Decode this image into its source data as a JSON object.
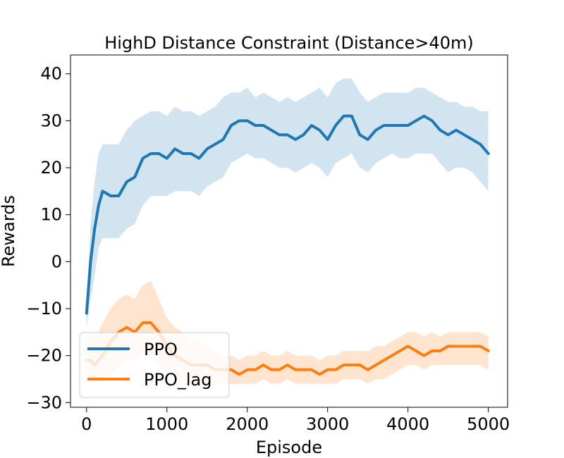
{
  "chart_data": {
    "type": "line",
    "title": "HighD Distance Constraint (Distance>40m)",
    "xlabel": "Episode",
    "ylabel": "Rewards",
    "xlim": [
      -200,
      5240
    ],
    "ylim": [
      -31,
      44
    ],
    "xticks": [
      0,
      1000,
      2000,
      3000,
      4000,
      5000
    ],
    "xtick_labels": [
      "0",
      "1000",
      "2000",
      "3000",
      "4000",
      "5000"
    ],
    "yticks": [
      -30,
      -20,
      -10,
      0,
      10,
      20,
      30,
      40
    ],
    "ytick_labels": [
      "−30",
      "−20",
      "−10",
      "0",
      "10",
      "20",
      "30",
      "40"
    ],
    "grid": false,
    "legend": {
      "position": "lower-left",
      "entries": [
        "PPO",
        "PPO_lag"
      ]
    },
    "series": [
      {
        "name": "PPO",
        "color": "#1f77b4",
        "band_color": "#1f77b4",
        "x": [
          0,
          50,
          100,
          150,
          200,
          300,
          400,
          500,
          600,
          700,
          800,
          900,
          1000,
          1100,
          1200,
          1300,
          1400,
          1500,
          1600,
          1700,
          1800,
          1900,
          2000,
          2100,
          2200,
          2300,
          2400,
          2500,
          2600,
          2700,
          2800,
          2900,
          3000,
          3100,
          3200,
          3300,
          3400,
          3500,
          3600,
          3700,
          3800,
          3900,
          4000,
          4100,
          4200,
          4300,
          4400,
          4500,
          4600,
          4700,
          4800,
          4900,
          5000
        ],
        "mean": [
          -11,
          0,
          7,
          12,
          15,
          14,
          14,
          17,
          18,
          22,
          23,
          23,
          22,
          24,
          23,
          23,
          22,
          24,
          25,
          26,
          29,
          30,
          30,
          29,
          29,
          28,
          27,
          27,
          26,
          27,
          29,
          28,
          26,
          29,
          31,
          31,
          27,
          26,
          28,
          29,
          29,
          29,
          29,
          30,
          31,
          30,
          28,
          27,
          28,
          27,
          26,
          25,
          23
        ],
        "upper": [
          -8,
          8,
          17,
          23,
          25,
          25,
          25,
          28,
          30,
          31,
          32,
          32,
          31,
          33,
          32,
          32,
          31,
          32,
          33,
          35,
          36,
          36,
          37,
          35,
          36,
          35,
          34,
          35,
          34,
          35,
          36,
          37,
          35,
          38,
          39,
          39,
          36,
          34,
          35,
          36,
          36,
          36,
          36,
          37,
          37,
          36,
          35,
          34,
          34,
          33,
          33,
          32,
          32
        ],
        "lower": [
          -14,
          -8,
          -3,
          3,
          5,
          5,
          5,
          7,
          8,
          12,
          14,
          14,
          14,
          15,
          15,
          15,
          14,
          16,
          17,
          18,
          21,
          22,
          23,
          22,
          22,
          21,
          20,
          20,
          19,
          20,
          21,
          20,
          18,
          21,
          22,
          23,
          20,
          19,
          21,
          22,
          23,
          22,
          22,
          23,
          23,
          23,
          21,
          19,
          20,
          20,
          19,
          17,
          15
        ]
      },
      {
        "name": "PPO_lag",
        "color": "#ff7f0e",
        "band_color": "#ff7f0e",
        "x": [
          0,
          50,
          100,
          150,
          200,
          300,
          400,
          500,
          600,
          700,
          800,
          900,
          1000,
          1100,
          1200,
          1300,
          1400,
          1500,
          1600,
          1700,
          1800,
          1900,
          2000,
          2100,
          2200,
          2300,
          2400,
          2500,
          2600,
          2700,
          2800,
          2900,
          3000,
          3100,
          3200,
          3300,
          3400,
          3500,
          3600,
          3700,
          3800,
          3900,
          4000,
          4100,
          4200,
          4300,
          4400,
          4500,
          4600,
          4700,
          4800,
          4900,
          5000
        ],
        "mean": [
          -21,
          -21,
          -22,
          -21,
          -20,
          -17,
          -15,
          -14,
          -15,
          -13,
          -13,
          -15,
          -18,
          -20,
          -21,
          -22,
          -22,
          -22,
          -23,
          -23,
          -23,
          -24,
          -23,
          -23,
          -22,
          -23,
          -23,
          -22,
          -23,
          -23,
          -23,
          -24,
          -23,
          -23,
          -22,
          -22,
          -22,
          -23,
          -22,
          -21,
          -20,
          -19,
          -18,
          -19,
          -20,
          -19,
          -19,
          -18,
          -18,
          -18,
          -18,
          -18,
          -19
        ],
        "upper": [
          -16,
          -15,
          -16,
          -15,
          -13,
          -10,
          -8,
          -7,
          -8,
          -5,
          -4,
          -8,
          -12,
          -14,
          -15,
          -17,
          -17,
          -18,
          -19,
          -20,
          -20,
          -21,
          -20,
          -20,
          -19,
          -20,
          -20,
          -19,
          -20,
          -20,
          -20,
          -21,
          -20,
          -20,
          -19,
          -19,
          -19,
          -19,
          -18,
          -18,
          -17,
          -16,
          -15,
          -15,
          -16,
          -15,
          -16,
          -15,
          -15,
          -15,
          -15,
          -15,
          -16
        ],
        "lower": [
          -24,
          -25,
          -26,
          -26,
          -25,
          -24,
          -22,
          -21,
          -21,
          -20,
          -20,
          -22,
          -24,
          -25,
          -25,
          -26,
          -26,
          -26,
          -26,
          -26,
          -26,
          -26,
          -26,
          -26,
          -25,
          -26,
          -26,
          -25,
          -26,
          -26,
          -26,
          -26,
          -26,
          -26,
          -25,
          -25,
          -25,
          -26,
          -25,
          -25,
          -24,
          -23,
          -22,
          -22,
          -23,
          -22,
          -22,
          -22,
          -22,
          -22,
          -22,
          -22,
          -23
        ]
      }
    ]
  }
}
